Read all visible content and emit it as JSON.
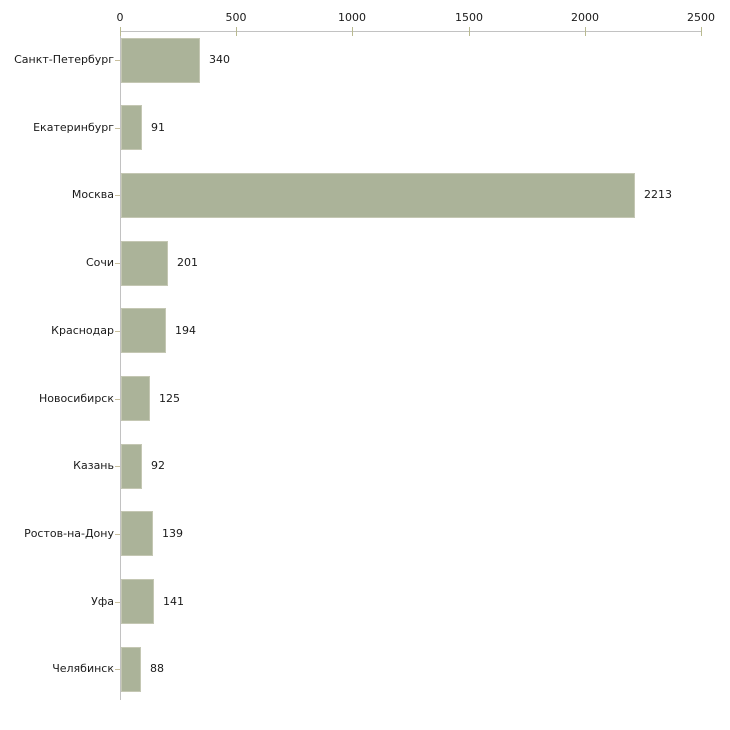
{
  "chart_data": {
    "type": "bar",
    "orientation": "horizontal",
    "title": "",
    "xlabel": "",
    "ylabel": "",
    "grid": false,
    "legend": false,
    "categories": [
      "Санкт-Петербург",
      "Екатеринбург",
      "Москва",
      "Сочи",
      "Краснодар",
      "Новосибирск",
      "Казань",
      "Ростов-на-Дону",
      "Уфа",
      "Челябинск"
    ],
    "values": [
      340,
      91,
      2213,
      201,
      194,
      125,
      92,
      139,
      141,
      88
    ],
    "value_labels": [
      "340",
      "91",
      "2213",
      "201",
      "194",
      "125",
      "92",
      "139",
      "141",
      "88"
    ],
    "x_axis": {
      "position": "top",
      "range": [
        0,
        2500
      ],
      "ticks": [
        0,
        500,
        1000,
        1500,
        2000,
        2500
      ],
      "tick_labels": [
        "0",
        "500",
        "1000",
        "1500",
        "2000",
        "2500"
      ]
    },
    "colors": {
      "bar_fill": "#abb399",
      "bar_border": "#c4c7b3",
      "axis_line": "#c2c2c2",
      "axis_tick": "#b9ba90",
      "category_tick": "#c9c09e",
      "text": "#1a1a1a",
      "background": "#ffffff"
    }
  }
}
